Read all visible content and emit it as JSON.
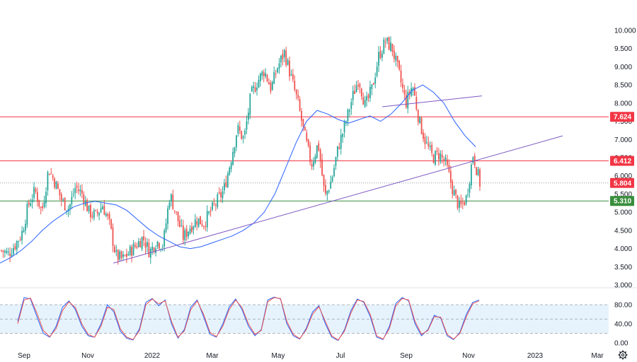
{
  "chart_data": [
    {
      "type": "candlestick",
      "panel": "price",
      "y_axis": {
        "ticks": [
          "10.000",
          "9.500",
          "9.000",
          "8.500",
          "8.000",
          "7.500",
          "7.000",
          "6.500",
          "6.000",
          "5.500",
          "5.000",
          "4.500",
          "4.000",
          "3.500",
          "3.000"
        ],
        "ylim": [
          2.85,
          10.25
        ]
      },
      "x_axis": {
        "labels": [
          "Sep",
          "Nov",
          "2022",
          "Mar",
          "May",
          "Jul",
          "Sep",
          "Nov",
          "2023",
          "Mar"
        ]
      },
      "price_path_weekly": [
        3.95,
        3.85,
        4.1,
        4.4,
        5.2,
        5.6,
        5.0,
        6.2,
        5.8,
        5.3,
        5.1,
        5.7,
        5.5,
        5.0,
        4.9,
        5.2,
        4.7,
        3.8,
        3.7,
        3.9,
        4.1,
        4.3,
        3.9,
        4.2,
        4.1,
        5.5,
        4.9,
        4.3,
        4.6,
        4.8,
        4.7,
        5.0,
        5.3,
        5.6,
        6.4,
        7.3,
        7.0,
        8.2,
        8.6,
        8.9,
        8.4,
        9.0,
        9.4,
        8.7,
        8.0,
        7.1,
        6.3,
        6.9,
        5.4,
        5.9,
        6.8,
        7.4,
        8.1,
        8.7,
        7.9,
        8.4,
        9.3,
        9.7,
        9.5,
        8.8,
        8.0,
        8.5,
        7.5,
        6.9,
        6.5,
        6.6,
        6.3,
        5.6,
        5.1,
        5.4,
        6.6,
        5.8
      ],
      "series": [
        {
          "values": [
            3.6,
            3.75,
            3.95,
            4.2,
            4.5,
            4.75,
            4.95,
            5.15,
            5.25,
            5.3,
            5.25,
            5.2,
            5.05,
            4.8,
            4.55,
            4.35,
            4.2,
            4.05,
            4.0,
            4.05,
            4.15,
            4.25,
            4.35,
            4.5,
            4.7,
            5.0,
            5.5,
            6.2,
            6.9,
            7.5,
            7.8,
            7.7,
            7.55,
            7.45,
            7.55,
            7.65,
            7.5,
            7.7,
            8.0,
            8.35,
            8.5,
            8.3,
            8.0,
            7.5,
            7.1,
            6.8
          ]
        }
      ],
      "trendlines": [
        {
          "from": {
            "x": "2021-12",
            "y": 3.6
          },
          "to": {
            "x": "2022-11",
            "y": 6.45
          },
          "extended_to": {
            "x": "2023-01",
            "y": 7.1
          }
        },
        {
          "from": {
            "x": "2022-08",
            "y": 7.9
          },
          "to": {
            "x": "2022-10",
            "y": 8.2
          }
        }
      ],
      "horizontal_levels": [
        {
          "value": 7.624,
          "label": "7.624",
          "color": "#f23645"
        },
        {
          "value": 6.412,
          "label": "6.412",
          "color": "#f23645"
        },
        {
          "value": 5.804,
          "label": "5.804",
          "color": "#f23645",
          "style": "dotted"
        },
        {
          "value": 5.31,
          "label": "5.310",
          "color": "#388e3c"
        }
      ],
      "colors": {
        "up": "#26a69a",
        "down": "#ef5350",
        "moving_average": "#2962ff",
        "trendline": "#7e57c2"
      }
    },
    {
      "type": "line",
      "panel": "stochastic",
      "y_axis": {
        "ticks": [
          "80.00",
          "40.00",
          "0.00"
        ],
        "ylim": [
          0,
          100
        ]
      },
      "bands": [
        20,
        50,
        80
      ],
      "series": [
        {
          "values": [
            45,
            95,
            92,
            55,
            20,
            12,
            35,
            75,
            88,
            70,
            35,
            15,
            12,
            40,
            80,
            65,
            25,
            10,
            6,
            30,
            85,
            93,
            78,
            90,
            40,
            10,
            28,
            75,
            90,
            55,
            18,
            12,
            40,
            75,
            92,
            70,
            35,
            15,
            28,
            90,
            96,
            92,
            40,
            15,
            8,
            30,
            65,
            78,
            40,
            12,
            5,
            28,
            68,
            92,
            85,
            55,
            12,
            7,
            35,
            83,
            95,
            88,
            40,
            15,
            28,
            58,
            52,
            15,
            7,
            22,
            60,
            85,
            90
          ]
        },
        {
          "values": [
            40,
            90,
            94,
            62,
            26,
            13,
            30,
            68,
            86,
            74,
            40,
            18,
            12,
            35,
            75,
            70,
            30,
            12,
            7,
            26,
            80,
            92,
            82,
            88,
            45,
            12,
            25,
            70,
            88,
            60,
            22,
            13,
            35,
            70,
            90,
            74,
            40,
            18,
            26,
            86,
            95,
            93,
            45,
            18,
            9,
            27,
            60,
            76,
            45,
            15,
            6,
            25,
            63,
            90,
            87,
            60,
            15,
            8,
            30,
            78,
            93,
            90,
            45,
            18,
            26,
            55,
            54,
            18,
            8,
            20,
            55,
            82,
            88
          ]
        }
      ],
      "colors": {
        "k": "#2962ff",
        "d": "#ef5350",
        "band_fill": "#e3f2fd"
      }
    }
  ]
}
